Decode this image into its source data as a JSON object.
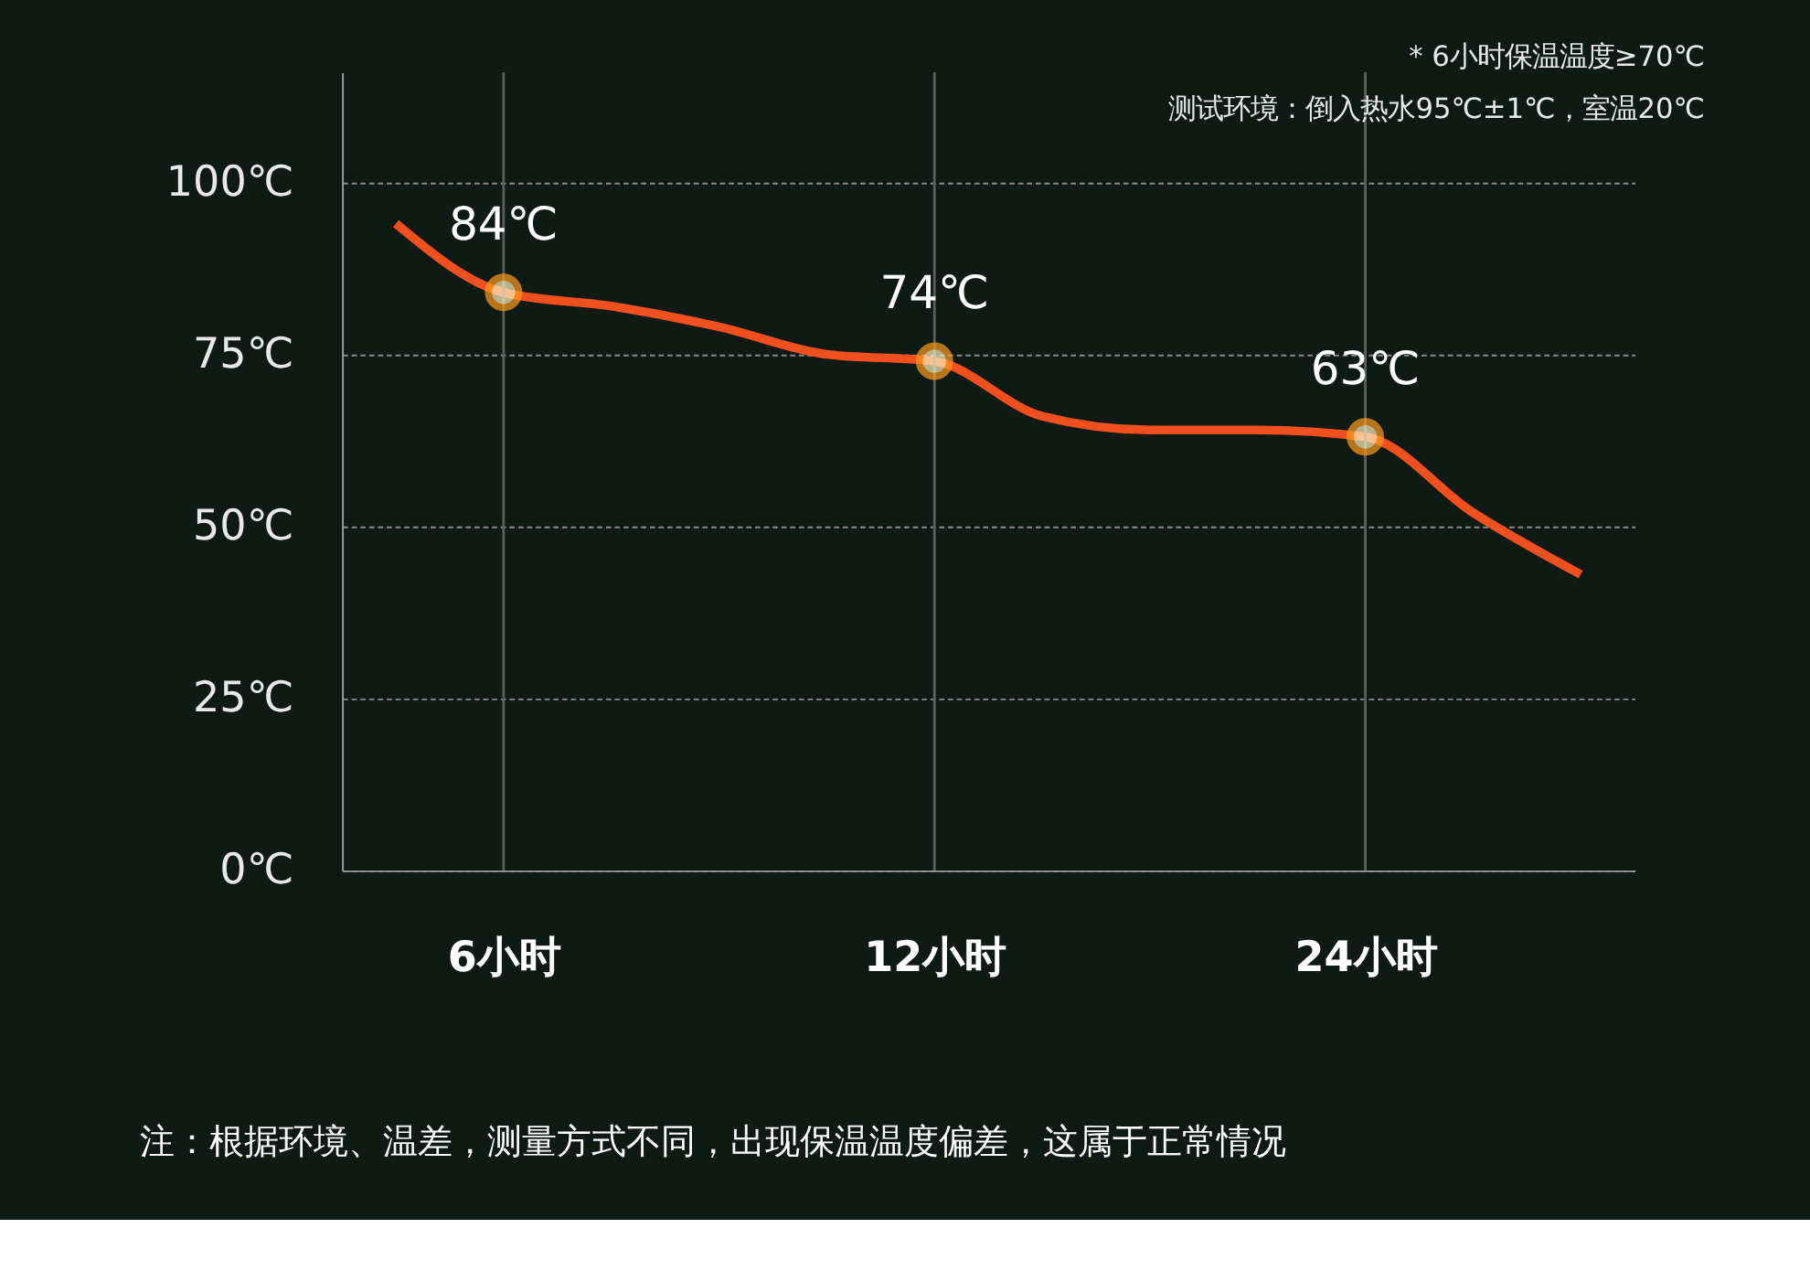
{
  "chart_data": {
    "type": "line",
    "annotations": [
      "* 6小时保温温度≥70℃",
      "测试环境：倒入热水95℃±1℃，室温20℃",
      "注：根据环境、温差，测量方式不同，出现保温温度偏差，这属于正常情况"
    ],
    "categories": [
      null,
      "6小时",
      null,
      null,
      null,
      "12小时",
      null,
      null,
      null,
      "24小时",
      null,
      null
    ],
    "series": [
      {
        "color": "#f0501e",
        "values": [
          94,
          84,
          82,
          79,
          75,
          74,
          66,
          64,
          64,
          63,
          52,
          43
        ],
        "value_labels": [
          null,
          "84℃",
          null,
          null,
          null,
          "74℃",
          null,
          null,
          null,
          "63℃",
          null,
          null
        ]
      }
    ],
    "ylim": [
      0,
      116
    ],
    "yticks": [
      {
        "value": 0,
        "label": "0℃"
      },
      {
        "value": 25,
        "label": "25℃"
      },
      {
        "value": 50,
        "label": "50℃"
      },
      {
        "value": 75,
        "label": "75℃"
      },
      {
        "value": 100,
        "label": "100℃"
      }
    ],
    "grid": "y",
    "line_style": "solid",
    "ref_lines": [
      {
        "axis": "x",
        "value": "6小时",
        "label": null
      },
      {
        "axis": "x",
        "value": "12小时",
        "label": null
      },
      {
        "axis": "x",
        "value": "24小时",
        "label": null
      }
    ]
  }
}
